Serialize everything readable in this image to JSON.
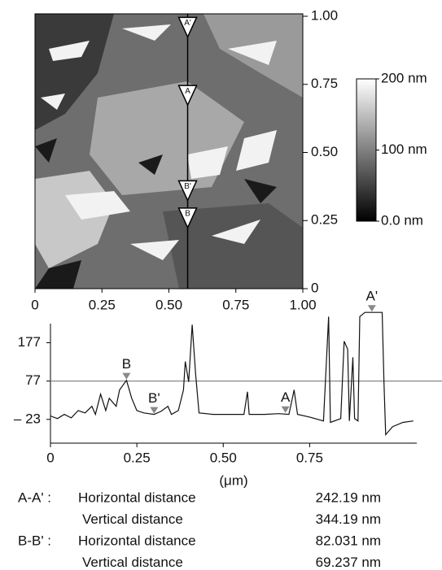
{
  "chart_data": [
    {
      "type": "image",
      "xlim": [
        0,
        1
      ],
      "xticks": [
        0,
        0.25,
        {
          "value": 0.5,
          "label": "0.50"
        },
        0.75,
        {
          "value": 1,
          "label": "1.00"
        }
      ],
      "ylim": [
        0,
        1
      ],
      "yticks": [
        0,
        0.25,
        {
          "value": 0.5,
          "label": "0.50"
        },
        0.75,
        {
          "value": 1,
          "label": "1.00"
        }
      ],
      "clim": [
        0,
        200
      ],
      "colorbar_ticks": [
        {
          "value": 0,
          "label": "0.0 nm"
        },
        {
          "value": 100,
          "label": "100 nm"
        },
        {
          "value": 200,
          "label": "200 nm"
        }
      ],
      "line_x": 0.57,
      "markers": {
        "labels": [
          "A'",
          "A",
          "B'",
          "B"
        ],
        "y": [
          0.96,
          0.71,
          0.36,
          0.26
        ]
      }
    },
    {
      "type": "line",
      "xlabel": "(μm)",
      "xlim": [
        0,
        1.06
      ],
      "xticks": [
        0,
        0.25,
        {
          "value": 0.5,
          "label": "0.50"
        },
        0.75
      ],
      "ylim": [
        -85,
        265
      ],
      "yticks": [
        {
          "value": -23,
          "label": "– 23"
        },
        77,
        177
      ],
      "hline": 77,
      "color": "#111111",
      "x": [
        0,
        0.02,
        0.04,
        0.06,
        0.08,
        0.1,
        0.12,
        0.13,
        0.145,
        0.16,
        0.17,
        0.19,
        0.2,
        0.22,
        0.235,
        0.25,
        0.27,
        0.3,
        0.32,
        0.34,
        0.35,
        0.37,
        0.385,
        0.39,
        0.4,
        0.41,
        0.42,
        0.43,
        0.47,
        0.52,
        0.56,
        0.57,
        0.575,
        0.62,
        0.66,
        0.69,
        0.7,
        0.705,
        0.715,
        0.75,
        0.79,
        0.805,
        0.81,
        0.84,
        0.85,
        0.86,
        0.865,
        0.875,
        0.88,
        0.89,
        0.895,
        0.91,
        0.96,
        0.965,
        0.97,
        0.99,
        1.02,
        1.05
      ],
      "values": [
        -14,
        -21,
        -10,
        -19,
        0,
        -6,
        11,
        -10,
        43,
        0,
        32,
        11,
        54,
        79,
        32,
        0,
        -6,
        -10,
        -2,
        11,
        -10,
        0,
        54,
        128,
        75,
        224,
        96,
        -6,
        -10,
        -10,
        -10,
        49,
        -10,
        -10,
        -8,
        -10,
        32,
        54,
        -10,
        -17,
        -27,
        245,
        -31,
        -21,
        181,
        160,
        -27,
        139,
        -21,
        -27,
        245,
        256,
        256,
        75,
        -63,
        -42,
        -31,
        -27
      ],
      "cursors": {
        "labels": [
          "B",
          "B'",
          "A",
          "A'"
        ],
        "x": [
          0.22,
          0.3,
          0.68,
          0.93
        ],
        "y": [
          79,
          -10,
          -8,
          256
        ]
      }
    }
  ],
  "measurements": [
    {
      "pair": "A-A' :",
      "rows": [
        {
          "label": "Horizontal distance",
          "value": "242.19 nm"
        },
        {
          "label": "Vertical distance",
          "value": "344.19 nm"
        }
      ]
    },
    {
      "pair": "B-B' :",
      "rows": [
        {
          "label": "Horizontal distance",
          "value": "82.031 nm"
        },
        {
          "label": "Vertical distance",
          "value": "69.237 nm"
        }
      ]
    }
  ]
}
